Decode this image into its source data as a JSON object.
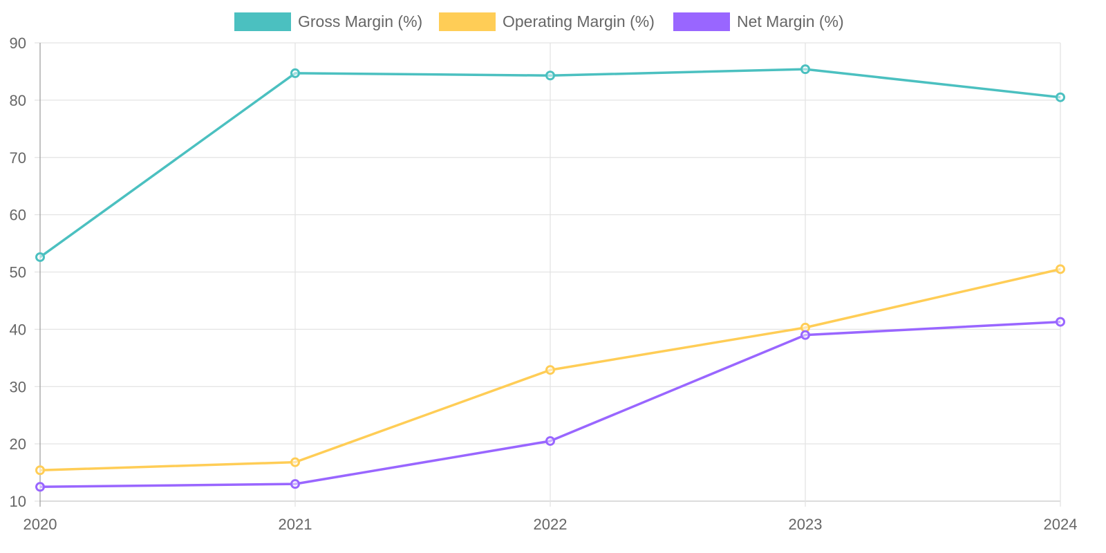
{
  "chart_data": {
    "type": "line",
    "title": "",
    "xlabel": "",
    "ylabel": "",
    "x": [
      "2020",
      "2021",
      "2022",
      "2023",
      "2024"
    ],
    "ylim": [
      10,
      90
    ],
    "yticks": [
      "10",
      "20",
      "30",
      "40",
      "50",
      "60",
      "70",
      "80",
      "90"
    ],
    "grid": true,
    "legend_position": "top-center",
    "series": [
      {
        "name": "Gross Margin (%)",
        "color": "#4BC0C0",
        "values": [
          52.6,
          84.7,
          84.3,
          85.4,
          80.5
        ]
      },
      {
        "name": "Operating Margin (%)",
        "color": "#FFCD56",
        "values": [
          15.4,
          16.8,
          32.9,
          40.3,
          50.5
        ]
      },
      {
        "name": "Net Margin (%)",
        "color": "#9966FF",
        "values": [
          12.5,
          13.0,
          20.5,
          39.0,
          41.3
        ]
      }
    ]
  }
}
